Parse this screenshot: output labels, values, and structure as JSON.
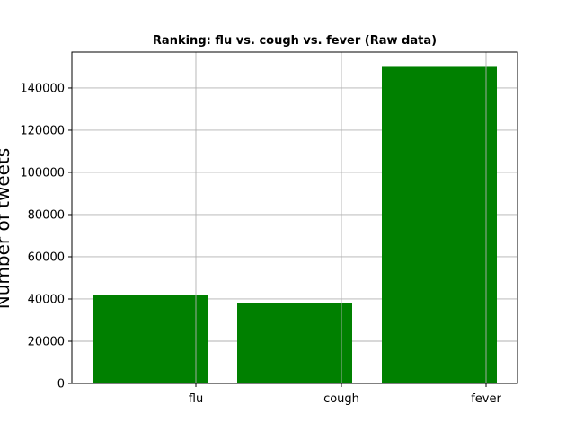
{
  "chart_data": {
    "type": "bar",
    "title": "Ranking: flu vs. cough vs. fever (Raw data)",
    "xlabel": "",
    "ylabel": "Number of tweets",
    "categories": [
      "flu",
      "cough",
      "fever"
    ],
    "values": [
      42000,
      38000,
      150000
    ],
    "ylim": [
      0,
      157000
    ],
    "yticks": [
      0,
      20000,
      40000,
      60000,
      80000,
      100000,
      120000,
      140000
    ],
    "ytick_labels": [
      "0",
      "20000",
      "40000",
      "60000",
      "80000",
      "100000",
      "120000",
      "140000"
    ],
    "grid": true,
    "bar_color": "#008000",
    "grid_color": "#b0b0b0"
  }
}
